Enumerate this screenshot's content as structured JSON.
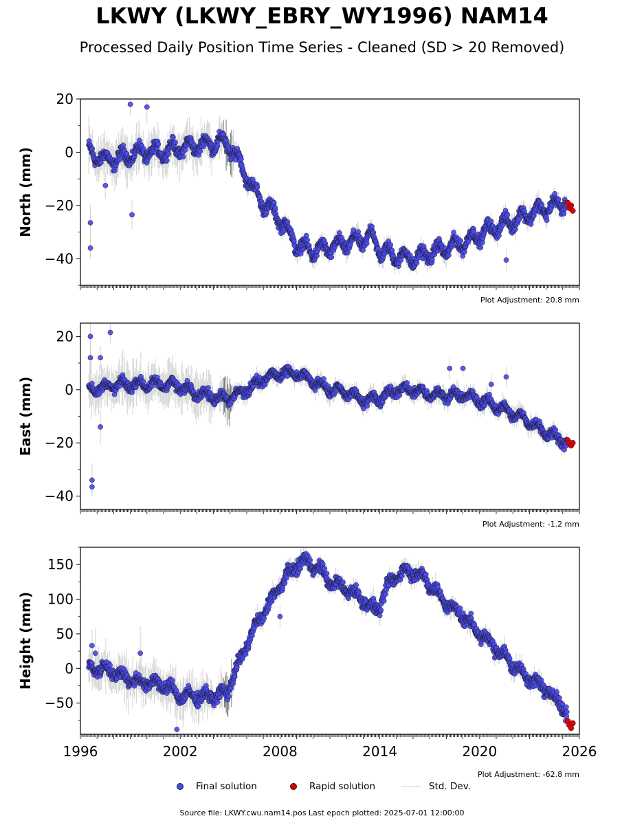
{
  "title": "LKWY (LKWY_EBRY_WY1996) NAM14",
  "subtitle": "Processed Daily Position Time Series - Cleaned (SD > 20 Removed)",
  "source_note": "Source file: LKWY.cwu.nam14.pos  Last epoch plotted: 2025-07-01 12:00:00",
  "legend": {
    "final_label": "Final solution",
    "rapid_label": "Rapid solution",
    "sd_label": "Std. Dev."
  },
  "colors": {
    "final": "#4a4af0",
    "rapid": "#e00000",
    "std_dev": "#c8c8c8",
    "marker_edge": "#1a1a1a"
  },
  "chart_data": [
    {
      "type": "scatter",
      "panel": "north",
      "ylabel": "North (mm)",
      "adjustment_label": "Plot Adjustment: 20.8 mm",
      "xlim": [
        1996,
        2026
      ],
      "ylim": [
        -50,
        20
      ],
      "yticks": [
        -40,
        -20,
        0,
        20
      ],
      "ytick_labels": [
        "−40",
        "−20",
        "0",
        "20"
      ],
      "trend": {
        "x": [
          1996.5,
          1997.5,
          1998.5,
          1999.5,
          2000.5,
          2001.5,
          2002.5,
          2003.5,
          2004.5,
          2005.0,
          2005.5,
          2006.0,
          2006.5,
          2007.0,
          2007.5,
          2008.0,
          2008.5,
          2009.0,
          2010.0,
          2011.0,
          2012.0,
          2013.0,
          2013.5,
          2014.0,
          2015.0,
          2016.0,
          2017.0,
          2018.0,
          2019.0,
          2020.0,
          2021.0,
          2022.0,
          2023.0,
          2024.0,
          2025.0,
          2025.5
        ],
        "y": [
          0,
          -3,
          -2,
          0,
          0,
          1,
          2,
          3,
          4,
          2,
          -3,
          -9,
          -15,
          -19,
          -22,
          -25,
          -30,
          -35,
          -37,
          -36,
          -34,
          -33,
          -31,
          -37,
          -39,
          -40,
          -38,
          -36,
          -34,
          -31,
          -28,
          -26,
          -23,
          -21,
          -19,
          -17
        ]
      },
      "series": [
        {
          "name": "Final solution",
          "seasonal_amplitude": 2.5,
          "scatter": 1.5,
          "x_end": 2025.25,
          "outliers": [
            [
              1996.6,
              -36
            ],
            [
              1996.6,
              -26.5
            ],
            [
              1999.0,
              18
            ],
            [
              2000.0,
              17
            ],
            [
              1999.1,
              -23.5
            ],
            [
              1997.5,
              -12.5
            ],
            [
              2021.6,
              -40.5
            ],
            [
              2016.6,
              -40
            ]
          ]
        },
        {
          "name": "Rapid solution",
          "x": [
            2025.3,
            2025.4,
            2025.5,
            2025.6
          ],
          "y": [
            -19,
            -21,
            -20,
            -22
          ]
        }
      ]
    },
    {
      "type": "scatter",
      "panel": "east",
      "ylabel": "East (mm)",
      "adjustment_label": "Plot Adjustment: -1.2 mm",
      "xlim": [
        1996,
        2026
      ],
      "ylim": [
        -45,
        25
      ],
      "yticks": [
        -40,
        -20,
        0,
        20
      ],
      "ytick_labels": [
        "−40",
        "−20",
        "0",
        "20"
      ],
      "trend": {
        "x": [
          1996.5,
          1997.5,
          1998.5,
          1999.5,
          2000.5,
          2001.5,
          2002.5,
          2003.5,
          2004.5,
          2005.0,
          2006.0,
          2007.0,
          2008.0,
          2009.0,
          2010.0,
          2011.0,
          2012.0,
          2013.0,
          2014.0,
          2015.0,
          2016.0,
          2017.0,
          2018.0,
          2019.0,
          2020.0,
          2021.0,
          2022.0,
          2023.0,
          2024.0,
          2025.0,
          2025.5
        ],
        "y": [
          0,
          1,
          2,
          2,
          2,
          2,
          0,
          -2,
          -3,
          -3,
          0,
          4,
          6,
          6,
          3,
          0,
          -1,
          -4,
          -3,
          0,
          0,
          -2,
          -2,
          -2,
          -4,
          -6,
          -9,
          -12,
          -16,
          -19,
          -21
        ]
      },
      "series": [
        {
          "name": "Final solution",
          "seasonal_amplitude": 1.5,
          "scatter": 1.2,
          "x_end": 2025.25,
          "outliers": [
            [
              1996.6,
              20
            ],
            [
              1996.6,
              12
            ],
            [
              1997.8,
              21.5
            ],
            [
              1997.2,
              12
            ],
            [
              1996.7,
              -34
            ],
            [
              1996.7,
              -36.5
            ],
            [
              1997.2,
              -14
            ],
            [
              2019.0,
              8
            ],
            [
              2018.2,
              8
            ],
            [
              2021.6,
              4.8
            ],
            [
              2020.7,
              2
            ]
          ]
        },
        {
          "name": "Rapid solution",
          "x": [
            2025.3,
            2025.4,
            2025.5,
            2025.6
          ],
          "y": [
            -19,
            -20,
            -21,
            -20
          ]
        }
      ]
    },
    {
      "type": "scatter",
      "panel": "height",
      "ylabel": "Height (mm)",
      "adjustment_label": "Plot Adjustment: -62.8 mm",
      "xlim": [
        1996,
        2026
      ],
      "ylim": [
        -95,
        175
      ],
      "yticks": [
        -50,
        0,
        50,
        100,
        150
      ],
      "ytick_labels": [
        "−50",
        "0",
        "50",
        "100",
        "150"
      ],
      "xticks": [
        1996,
        2002,
        2008,
        2014,
        2020,
        2026
      ],
      "xtick_labels": [
        "1996",
        "2002",
        "2008",
        "2014",
        "2020",
        "2026"
      ],
      "trend": {
        "x": [
          1996.5,
          1997.5,
          1998.5,
          1999.5,
          2000.5,
          2001.5,
          2002.0,
          2003.0,
          2004.0,
          2004.8,
          2005.2,
          2005.6,
          2006.0,
          2006.5,
          2007.0,
          2007.5,
          2008.0,
          2008.5,
          2009.0,
          2009.5,
          2010.0,
          2010.5,
          2011.0,
          2012.0,
          2013.0,
          2013.5,
          2014.0,
          2014.5,
          2015.0,
          2015.5,
          2016.0,
          2016.5,
          2017.0,
          2018.0,
          2019.0,
          2020.0,
          2021.0,
          2022.0,
          2023.0,
          2024.0,
          2025.0,
          2025.5
        ],
        "y": [
          0,
          0,
          -10,
          -20,
          -20,
          -30,
          -40,
          -40,
          -40,
          -35,
          -10,
          10,
          35,
          60,
          80,
          100,
          120,
          135,
          150,
          155,
          150,
          140,
          125,
          115,
          100,
          85,
          90,
          120,
          135,
          140,
          140,
          135,
          120,
          95,
          75,
          50,
          30,
          5,
          -15,
          -30,
          -55,
          -75
        ]
      },
      "series": [
        {
          "name": "Final solution",
          "seasonal_amplitude": 6,
          "scatter": 6,
          "x_end": 2025.25,
          "outliers": [
            [
              1996.7,
              33
            ],
            [
              1996.9,
              22
            ],
            [
              1999.6,
              22
            ],
            [
              2001.8,
              -88
            ],
            [
              2008.0,
              75
            ],
            [
              2019.0,
              80
            ]
          ]
        },
        {
          "name": "Rapid solution",
          "x": [
            2025.3,
            2025.4,
            2025.5,
            2025.6
          ],
          "y": [
            -76,
            -82,
            -86,
            -79
          ]
        }
      ]
    }
  ]
}
